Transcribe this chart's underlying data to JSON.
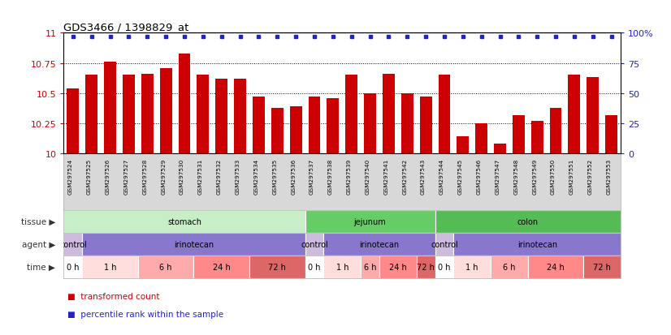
{
  "title": "GDS3466 / 1398829_at",
  "samples": [
    "GSM297524",
    "GSM297525",
    "GSM297526",
    "GSM297527",
    "GSM297528",
    "GSM297529",
    "GSM297530",
    "GSM297531",
    "GSM297532",
    "GSM297533",
    "GSM297534",
    "GSM297535",
    "GSM297536",
    "GSM297537",
    "GSM297538",
    "GSM297539",
    "GSM297540",
    "GSM297541",
    "GSM297542",
    "GSM297543",
    "GSM297544",
    "GSM297545",
    "GSM297546",
    "GSM297547",
    "GSM297548",
    "GSM297549",
    "GSM297550",
    "GSM297551",
    "GSM297552",
    "GSM297553"
  ],
  "bar_values": [
    10.54,
    10.65,
    10.76,
    10.65,
    10.66,
    10.71,
    10.83,
    10.65,
    10.62,
    10.62,
    10.47,
    10.38,
    10.39,
    10.47,
    10.46,
    10.65,
    10.5,
    10.66,
    10.5,
    10.47,
    10.65,
    10.14,
    10.25,
    10.08,
    10.32,
    10.27,
    10.38,
    10.65,
    10.63,
    10.32
  ],
  "percentile_values": [
    97,
    97,
    97,
    97,
    97,
    97,
    97,
    97,
    97,
    97,
    97,
    97,
    97,
    97,
    97,
    97,
    97,
    97,
    97,
    97,
    97,
    97,
    97,
    97,
    97,
    97,
    97,
    97,
    97,
    97
  ],
  "bar_color": "#CC0000",
  "dot_color": "#2222CC",
  "ymin": 10.0,
  "ymax": 11.0,
  "yticks": [
    10.0,
    10.25,
    10.5,
    10.75,
    11.0
  ],
  "ytick_labels": [
    "10",
    "10.25",
    "10.5",
    "10.75",
    "11"
  ],
  "right_yticks": [
    0,
    25,
    50,
    75,
    100
  ],
  "right_ytick_labels": [
    "0",
    "25",
    "50",
    "75",
    "100%"
  ],
  "tissue_groups": [
    {
      "label": "stomach",
      "start": 0,
      "end": 13,
      "color": "#c8eec8"
    },
    {
      "label": "jejunum",
      "start": 13,
      "end": 20,
      "color": "#66cc66"
    },
    {
      "label": "colon",
      "start": 20,
      "end": 30,
      "color": "#55bb55"
    }
  ],
  "agent_groups": [
    {
      "label": "control",
      "start": 0,
      "end": 1,
      "color": "#ccbbdd"
    },
    {
      "label": "irinotecan",
      "start": 1,
      "end": 13,
      "color": "#8877cc"
    },
    {
      "label": "control",
      "start": 13,
      "end": 14,
      "color": "#ccbbdd"
    },
    {
      "label": "irinotecan",
      "start": 14,
      "end": 20,
      "color": "#8877cc"
    },
    {
      "label": "control",
      "start": 20,
      "end": 21,
      "color": "#ccbbdd"
    },
    {
      "label": "irinotecan",
      "start": 21,
      "end": 30,
      "color": "#8877cc"
    }
  ],
  "time_groups": [
    {
      "label": "0 h",
      "start": 0,
      "end": 1,
      "color": "#ffffff"
    },
    {
      "label": "1 h",
      "start": 1,
      "end": 4,
      "color": "#ffdddd"
    },
    {
      "label": "6 h",
      "start": 4,
      "end": 7,
      "color": "#ffaaaa"
    },
    {
      "label": "24 h",
      "start": 7,
      "end": 10,
      "color": "#ff8888"
    },
    {
      "label": "72 h",
      "start": 10,
      "end": 13,
      "color": "#dd6666"
    },
    {
      "label": "0 h",
      "start": 13,
      "end": 14,
      "color": "#ffffff"
    },
    {
      "label": "1 h",
      "start": 14,
      "end": 16,
      "color": "#ffdddd"
    },
    {
      "label": "6 h",
      "start": 16,
      "end": 17,
      "color": "#ffaaaa"
    },
    {
      "label": "24 h",
      "start": 17,
      "end": 19,
      "color": "#ff8888"
    },
    {
      "label": "72 h",
      "start": 19,
      "end": 20,
      "color": "#dd6666"
    },
    {
      "label": "0 h",
      "start": 20,
      "end": 21,
      "color": "#ffffff"
    },
    {
      "label": "1 h",
      "start": 21,
      "end": 23,
      "color": "#ffdddd"
    },
    {
      "label": "6 h",
      "start": 23,
      "end": 25,
      "color": "#ffaaaa"
    },
    {
      "label": "24 h",
      "start": 25,
      "end": 28,
      "color": "#ff8888"
    },
    {
      "label": "72 h",
      "start": 28,
      "end": 30,
      "color": "#dd6666"
    }
  ],
  "legend_items": [
    {
      "label": "transformed count",
      "color": "#CC0000"
    },
    {
      "label": "percentile rank within the sample",
      "color": "#2222CC"
    }
  ],
  "bg_color": "#f0f0f0",
  "row_label_color": "#333333",
  "tick_label_area_color": "#d8d8d8"
}
